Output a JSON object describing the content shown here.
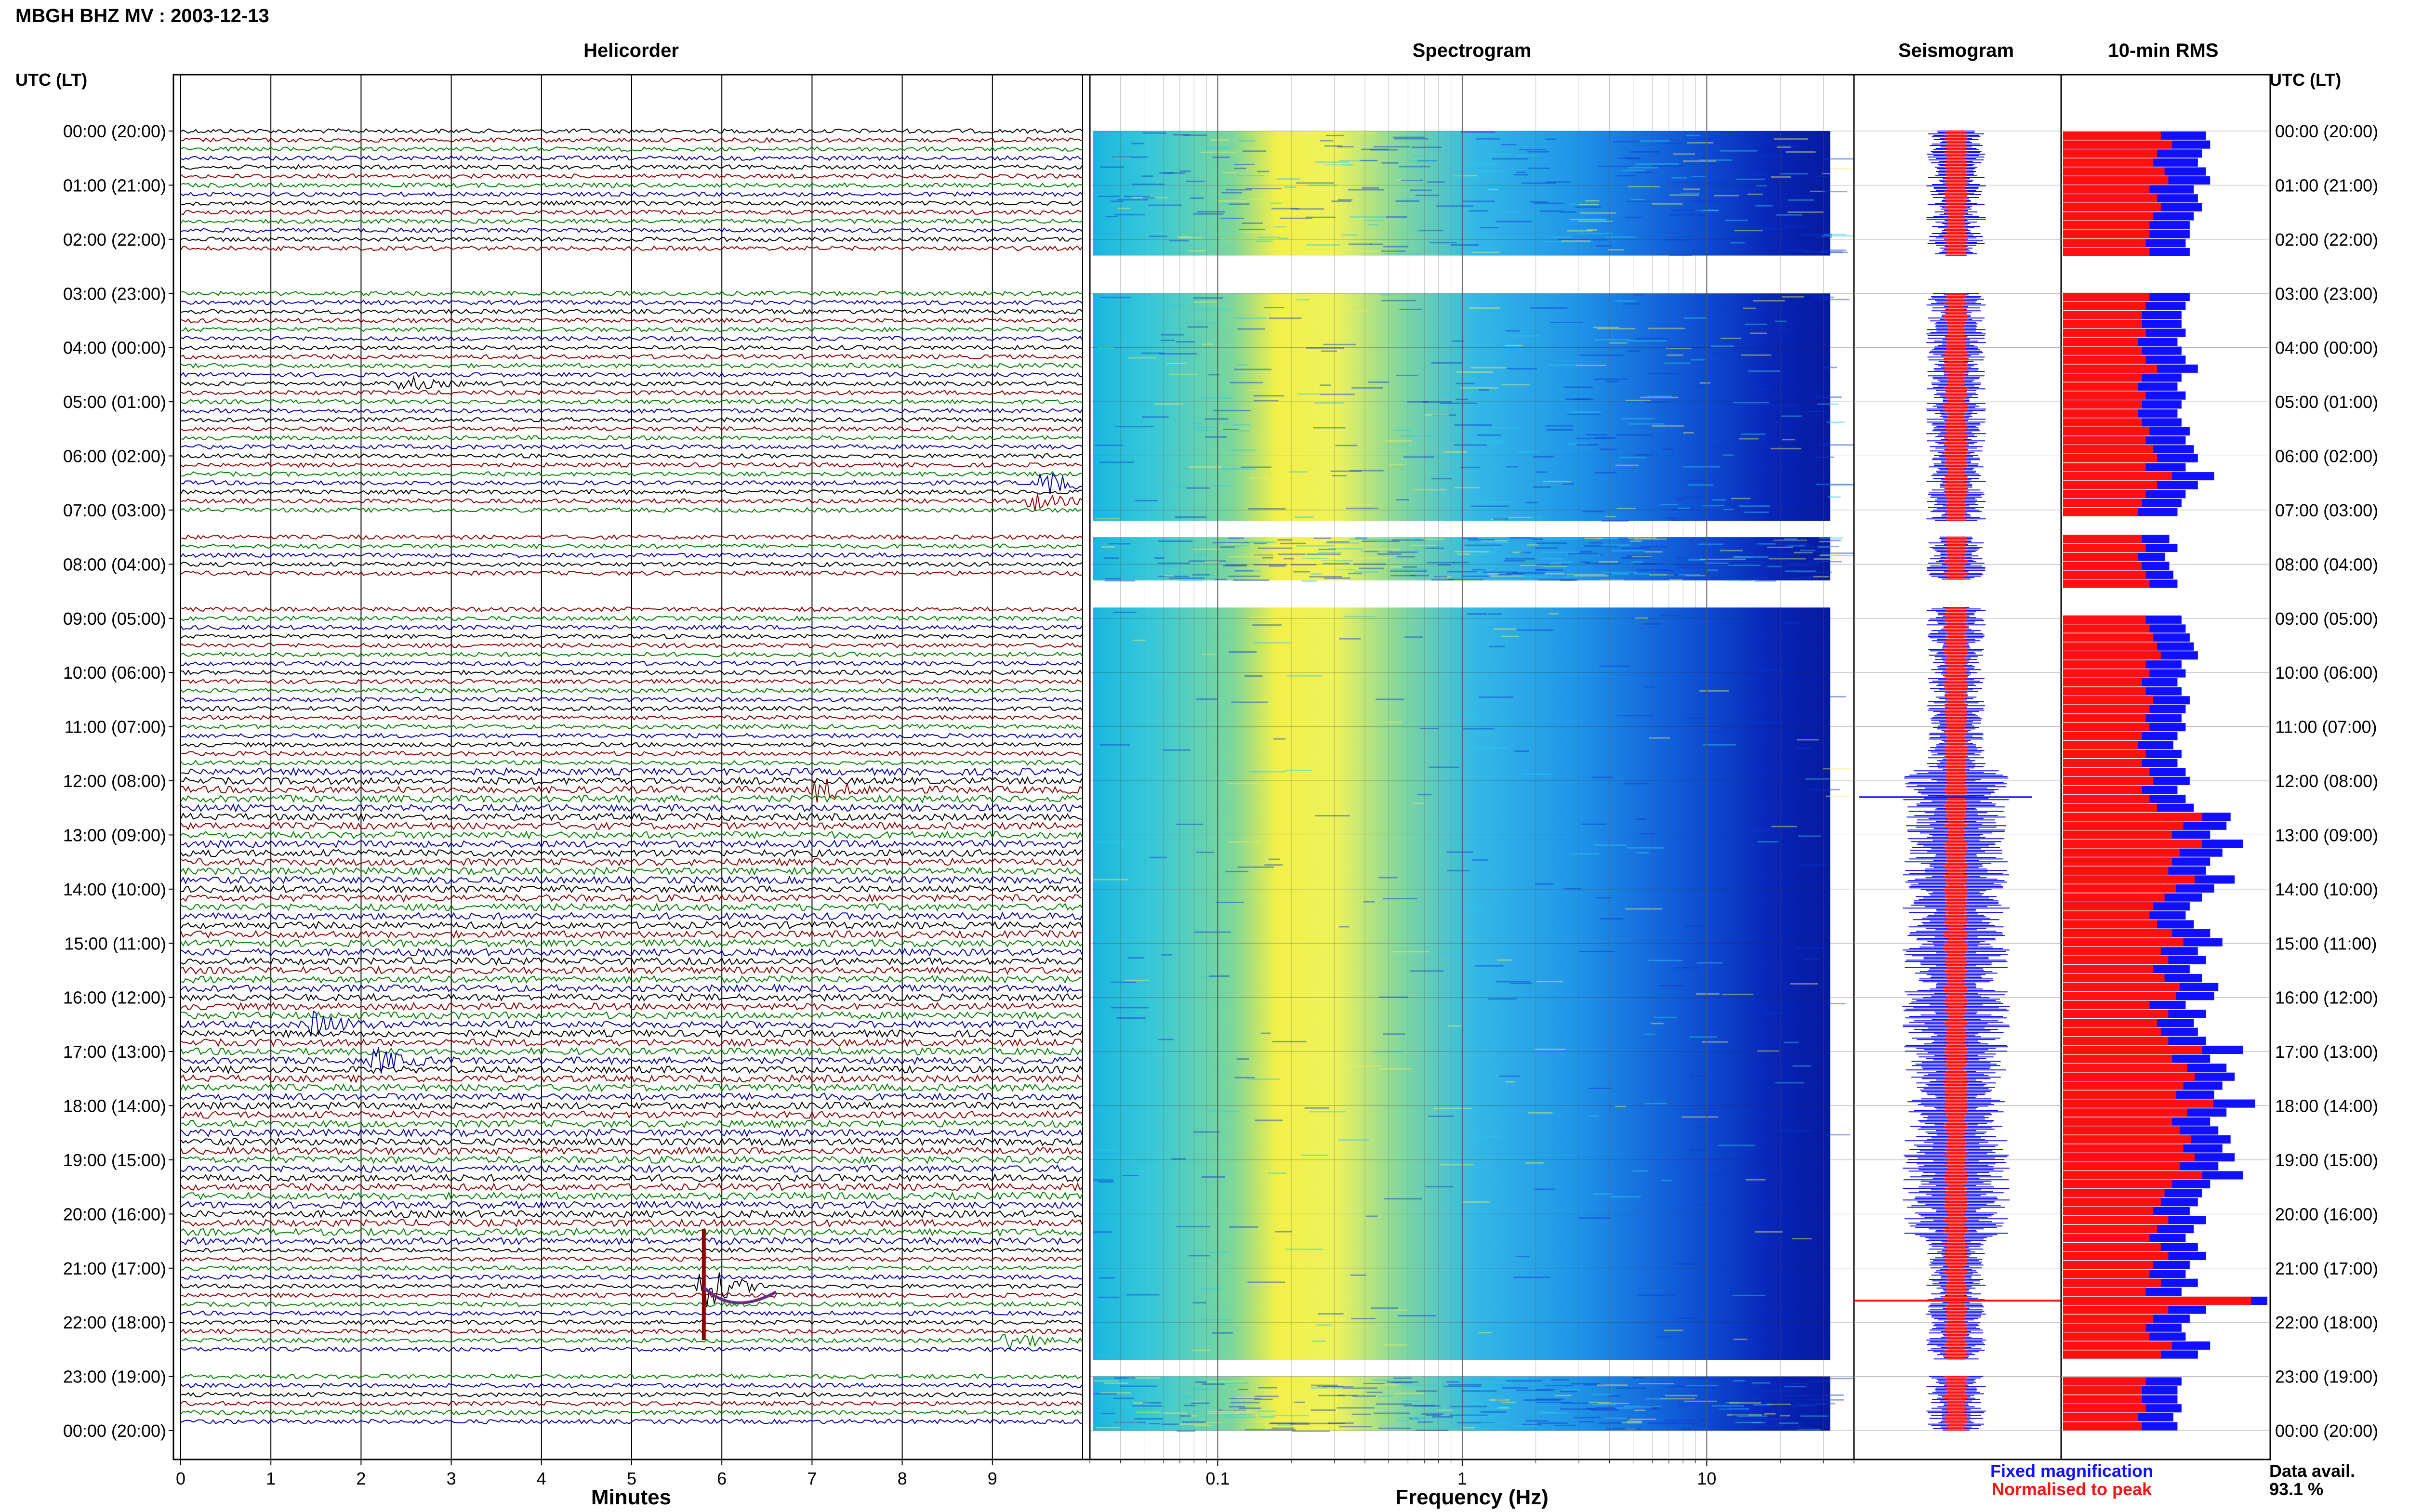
{
  "header": {
    "station_title": "MBGH BHZ MV : 2003-12-13",
    "utc_label": "UTC (LT)"
  },
  "panels": {
    "helicorder": "Helicorder",
    "spectrogram": "Spectrogram",
    "seismogram": "Seismogram",
    "rms": "10-min RMS"
  },
  "axes": {
    "helicorder_xlabel": "Minutes",
    "spectrogram_xlabel": "Frequency (Hz)",
    "helicorder_ticks": [
      "0",
      "1",
      "2",
      "3",
      "4",
      "5",
      "6",
      "7",
      "8",
      "9"
    ],
    "spectrogram_ticks": [
      "0.1",
      "1",
      "10"
    ]
  },
  "legend": {
    "fixed": "Fixed magnification",
    "normalised": "Normalised to peak",
    "fixed_color": "#1010ff",
    "normalised_color": "#ff1010"
  },
  "availability": {
    "label": "Data avail.",
    "value": "93.1 %"
  },
  "chart_data": {
    "type": "helicorder",
    "time_labels": [
      "00:00 (20:00)",
      "01:00 (21:00)",
      "02:00 (22:00)",
      "03:00 (23:00)",
      "04:00 (00:00)",
      "05:00 (01:00)",
      "06:00 (02:00)",
      "07:00 (03:00)",
      "08:00 (04:00)",
      "09:00 (05:00)",
      "10:00 (06:00)",
      "11:00 (07:00)",
      "12:00 (08:00)",
      "13:00 (09:00)",
      "14:00 (10:00)",
      "15:00 (11:00)",
      "16:00 (12:00)",
      "17:00 (13:00)",
      "18:00 (14:00)",
      "19:00 (15:00)",
      "20:00 (16:00)",
      "21:00 (17:00)",
      "22:00 (18:00)",
      "23:00 (19:00)",
      "00:00 (20:00)"
    ],
    "helicorder_xlim": [
      0,
      10
    ],
    "spectrogram_xlim": [
      0.03,
      40
    ],
    "spectrogram_scale": "log",
    "trace_colors": [
      "#000000",
      "#8b0000",
      "#008000",
      "#0000aa"
    ],
    "data_gaps_hours": [
      [
        2.3,
        3.0
      ],
      [
        7.2,
        7.5
      ],
      [
        8.3,
        8.8
      ],
      [
        22.7,
        23.0
      ]
    ],
    "events": [
      {
        "hour": 6.55,
        "minute": 9.6,
        "amplitude": 3.0,
        "color": "#008000"
      },
      {
        "hour": 6.9,
        "minute": 9.4,
        "amplitude": 2.5,
        "color": "#8b0000"
      },
      {
        "hour": 4.6,
        "minute": 2.5,
        "amplitude": 1.6,
        "color": "#000000"
      },
      {
        "hour": 12.1,
        "minute": 7.1,
        "amplitude": 1.6,
        "color": "#8b0000"
      },
      {
        "hour": 21.4,
        "minute": 5.8,
        "amplitude": 6.0,
        "color": "#8b0000"
      },
      {
        "hour": 22.4,
        "minute": 9.2,
        "amplitude": 2.2,
        "color": "#008000"
      },
      {
        "hour": 16.5,
        "minute": 1.5,
        "amplitude": 1.8,
        "color": "#000000"
      },
      {
        "hour": 17.1,
        "minute": 2.2,
        "amplitude": 1.6,
        "color": "#008000"
      }
    ],
    "rms_10min": {
      "fixed_magnification": [
        0.7,
        0.72,
        0.68,
        0.66,
        0.7,
        0.72,
        0.64,
        0.66,
        0.68,
        0.64,
        0.62,
        0.62,
        0.6,
        0.62,
        0,
        0,
        0,
        0,
        0.62,
        0.6,
        0.58,
        0.58,
        0.6,
        0.56,
        0.58,
        0.6,
        0.66,
        0.58,
        0.56,
        0.6,
        0.58,
        0.56,
        0.58,
        0.62,
        0.6,
        0.64,
        0.66,
        0.6,
        0.74,
        0.66,
        0.6,
        0.58,
        0.56,
        0,
        0,
        0.52,
        0.56,
        0.5,
        0.52,
        0.54,
        0.56,
        0,
        0,
        0,
        0.58,
        0.6,
        0.62,
        0.64,
        0.66,
        0.58,
        0.6,
        0.56,
        0.58,
        0.62,
        0.6,
        0.58,
        0.6,
        0.56,
        0.54,
        0.58,
        0.56,
        0.6,
        0.62,
        0.56,
        0.6,
        0.64,
        0.82,
        0.8,
        0.72,
        0.88,
        0.78,
        0.72,
        0.7,
        0.84,
        0.74,
        0.68,
        0.62,
        0.6,
        0.64,
        0.72,
        0.78,
        0.66,
        0.7,
        0.62,
        0.68,
        0.76,
        0.74,
        0.6,
        0.7,
        0.64,
        0.66,
        0.7,
        0.88,
        0.72,
        0.8,
        0.84,
        0.78,
        0.74,
        0.94,
        0.8,
        0.72,
        0.76,
        0.82,
        0.78,
        0.84,
        0.76,
        0.88,
        0.72,
        0.68,
        0.66,
        0.62,
        0.7,
        0.64,
        0.6,
        0.66,
        0.7,
        0.62,
        0.6,
        0.66,
        0.58,
        1.0,
        0.7,
        0.62,
        0.58,
        0.6,
        0.72,
        0.66,
        0,
        0,
        0.58,
        0.56,
        0.56,
        0.58,
        0.54,
        0.56
      ],
      "normalised_to_peak": [
        0.52,
        0.58,
        0.5,
        0.48,
        0.54,
        0.56,
        0.46,
        0.5,
        0.52,
        0.48,
        0.46,
        0.46,
        0.44,
        0.46,
        0,
        0,
        0,
        0,
        0.46,
        0.44,
        0.42,
        0.42,
        0.44,
        0.4,
        0.42,
        0.44,
        0.5,
        0.42,
        0.4,
        0.44,
        0.42,
        0.4,
        0.42,
        0.46,
        0.44,
        0.48,
        0.5,
        0.44,
        0.58,
        0.5,
        0.44,
        0.42,
        0.4,
        0,
        0,
        0.42,
        0.44,
        0.4,
        0.42,
        0.44,
        0.46,
        0,
        0,
        0,
        0.44,
        0.46,
        0.48,
        0.5,
        0.52,
        0.44,
        0.46,
        0.42,
        0.44,
        0.48,
        0.46,
        0.44,
        0.46,
        0.42,
        0.4,
        0.44,
        0.42,
        0.46,
        0.48,
        0.42,
        0.46,
        0.5,
        0.74,
        0.64,
        0.58,
        0.74,
        0.62,
        0.58,
        0.56,
        0.7,
        0.6,
        0.54,
        0.48,
        0.46,
        0.5,
        0.58,
        0.64,
        0.52,
        0.56,
        0.48,
        0.54,
        0.62,
        0.6,
        0.46,
        0.56,
        0.5,
        0.52,
        0.56,
        0.74,
        0.58,
        0.66,
        0.7,
        0.64,
        0.6,
        0.8,
        0.66,
        0.58,
        0.62,
        0.68,
        0.64,
        0.7,
        0.62,
        0.74,
        0.58,
        0.54,
        0.52,
        0.48,
        0.56,
        0.5,
        0.46,
        0.52,
        0.56,
        0.48,
        0.46,
        0.52,
        0.44,
        1.0,
        0.56,
        0.48,
        0.44,
        0.46,
        0.58,
        0.52,
        0,
        0,
        0.44,
        0.42,
        0.42,
        0.44,
        0.4,
        0.42
      ]
    }
  }
}
